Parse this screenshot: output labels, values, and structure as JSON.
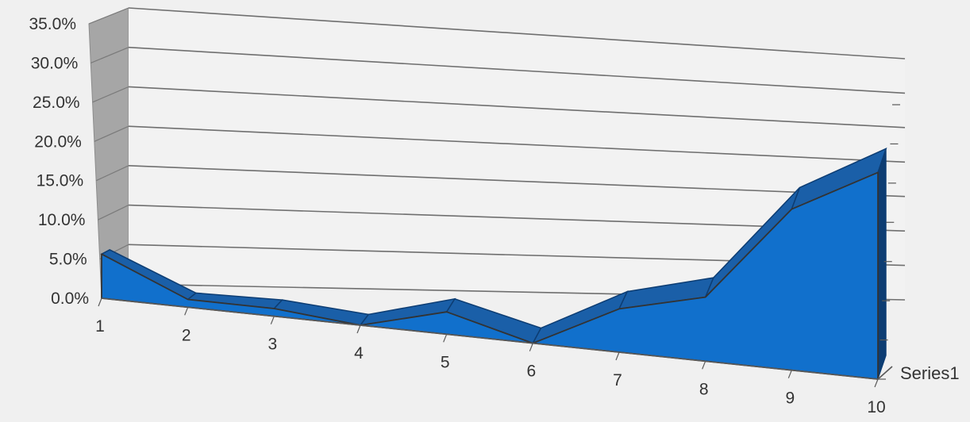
{
  "chart_data": {
    "type": "area",
    "view": "3d",
    "categories": [
      "1",
      "2",
      "3",
      "4",
      "5",
      "6",
      "7",
      "8",
      "9",
      "10"
    ],
    "series": [
      {
        "name": "Series1",
        "values": [
          5.6,
          1.0,
          1.0,
          0.0,
          3.0,
          0.0,
          6.0,
          9.0,
          23.0,
          30.0
        ]
      }
    ],
    "ylim": [
      0,
      35
    ],
    "y_ticks": [
      "0.0%",
      "5.0%",
      "10.0%",
      "15.0%",
      "20.0%",
      "25.0%",
      "30.0%",
      "35.0%"
    ],
    "grid": true,
    "legend": "none",
    "title": "",
    "xlabel": "",
    "ylabel": "",
    "colors": {
      "area_front": "#1170cc",
      "area_top": "#1a5fa8",
      "area_edge": "#0d3d73",
      "back_wall": "#f2f2f2",
      "side_wall": "#a6a6a6",
      "gridline": "#6f6f6f",
      "axis": "#595959"
    }
  }
}
